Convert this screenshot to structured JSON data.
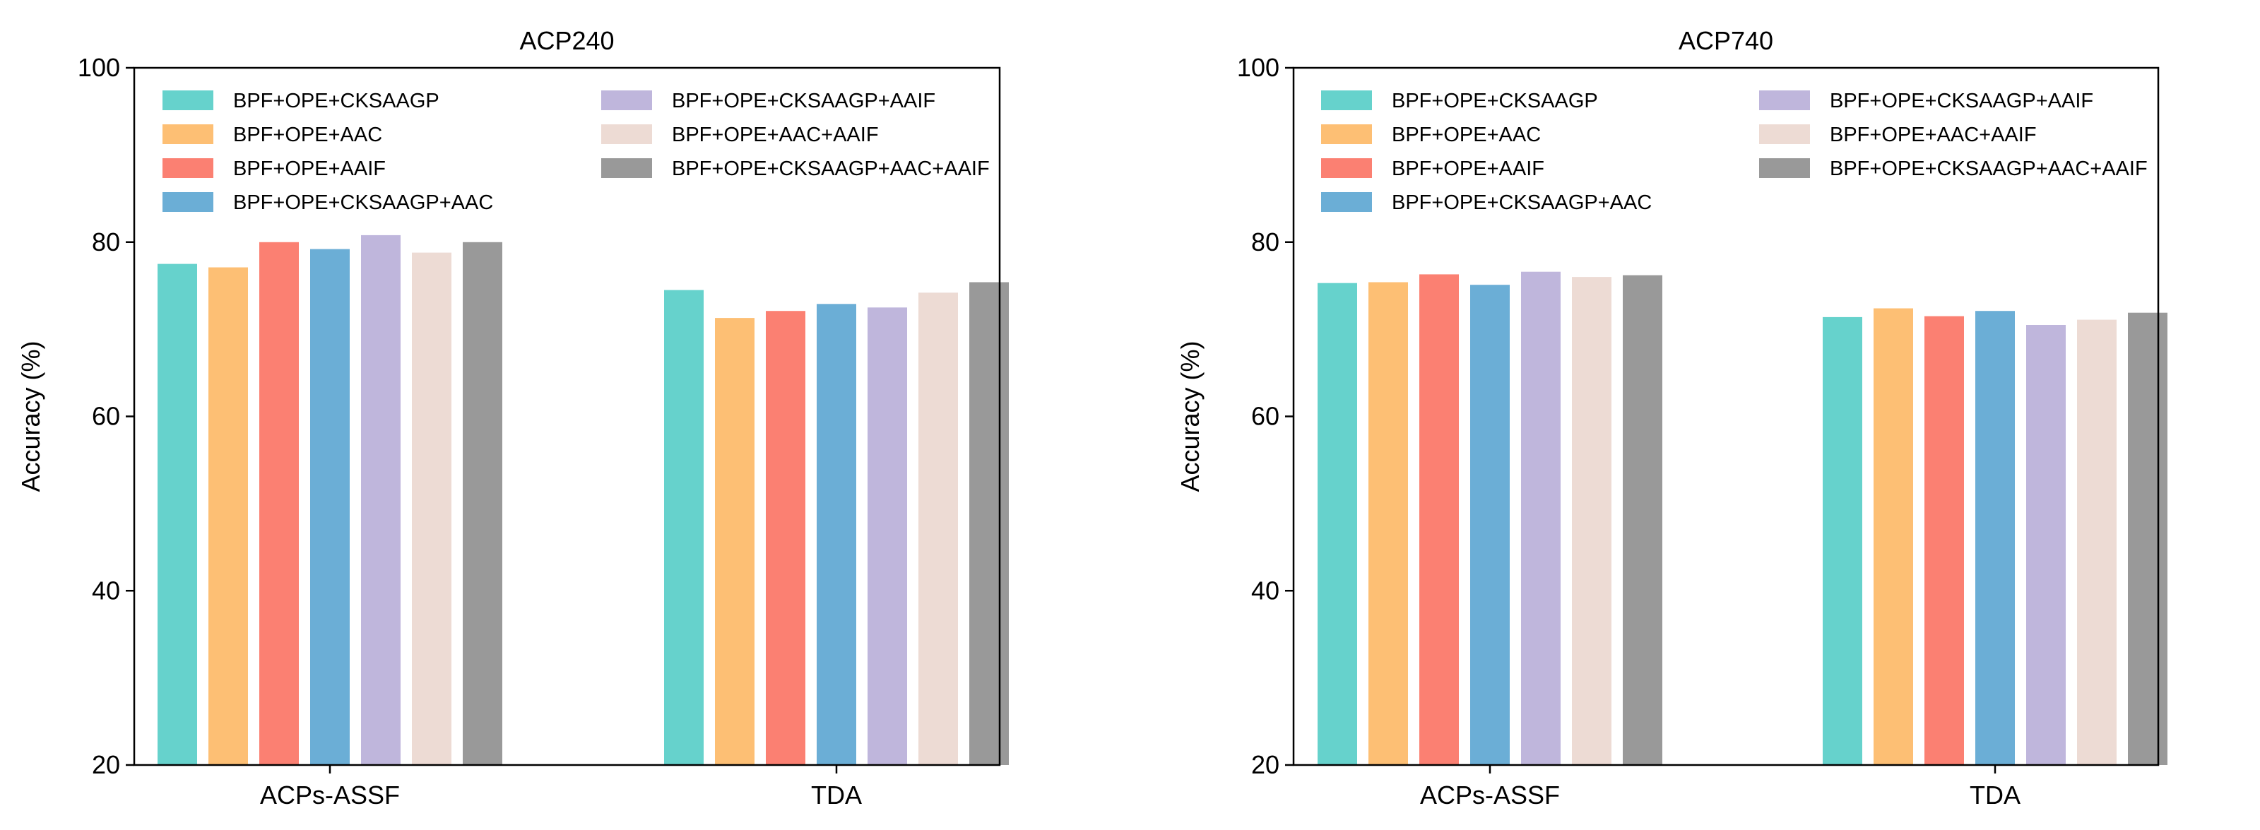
{
  "chart_data": [
    {
      "type": "bar",
      "title": "ACP240",
      "xlabel": "",
      "ylabel": "Accuracy (%)",
      "ylim": [
        20,
        100
      ],
      "yticks": [
        "20",
        "40",
        "60",
        "80",
        "100"
      ],
      "categories": [
        "ACPs-ASSF",
        "TDA"
      ],
      "legend_position": "top-left",
      "series": [
        {
          "name": "BPF+OPE+CKSAAGP",
          "color": "#66d2cc",
          "values": [
            77.5,
            74.5
          ]
        },
        {
          "name": "BPF+OPE+AAC",
          "color": "#fdbf74",
          "values": [
            77.1,
            71.3
          ]
        },
        {
          "name": "BPF+OPE+AAIF",
          "color": "#fb8072",
          "values": [
            80.0,
            72.1
          ]
        },
        {
          "name": "BPF+OPE+CKSAAGP+AAC",
          "color": "#6baed6",
          "values": [
            79.2,
            72.9
          ]
        },
        {
          "name": "BPF+OPE+CKSAAGP+AAIF",
          "color": "#bfb6dc",
          "values": [
            80.8,
            72.5
          ]
        },
        {
          "name": "BPF+OPE+AAC+AAIF",
          "color": "#eddbd4",
          "values": [
            78.8,
            74.2
          ]
        },
        {
          "name": "BPF+OPE+CKSAAGP+AAC+AAIF",
          "color": "#999999",
          "values": [
            80.0,
            75.4
          ]
        }
      ]
    },
    {
      "type": "bar",
      "title": "ACP740",
      "xlabel": "",
      "ylabel": "Accuracy (%)",
      "ylim": [
        20,
        100
      ],
      "yticks": [
        "20",
        "40",
        "60",
        "80",
        "100"
      ],
      "categories": [
        "ACPs-ASSF",
        "TDA"
      ],
      "legend_position": "top-left",
      "series": [
        {
          "name": "BPF+OPE+CKSAAGP",
          "color": "#66d2cc",
          "values": [
            75.3,
            71.4
          ]
        },
        {
          "name": "BPF+OPE+AAC",
          "color": "#fdbf74",
          "values": [
            75.4,
            72.4
          ]
        },
        {
          "name": "BPF+OPE+AAIF",
          "color": "#fb8072",
          "values": [
            76.3,
            71.5
          ]
        },
        {
          "name": "BPF+OPE+CKSAAGP+AAC",
          "color": "#6baed6",
          "values": [
            75.1,
            72.1
          ]
        },
        {
          "name": "BPF+OPE+CKSAAGP+AAIF",
          "color": "#bfb6dc",
          "values": [
            76.6,
            70.5
          ]
        },
        {
          "name": "BPF+OPE+AAC+AAIF",
          "color": "#eddbd4",
          "values": [
            76.0,
            71.1
          ]
        },
        {
          "name": "BPF+OPE+CKSAAGP+AAC+AAIF",
          "color": "#999999",
          "values": [
            76.2,
            71.9
          ]
        }
      ]
    }
  ]
}
